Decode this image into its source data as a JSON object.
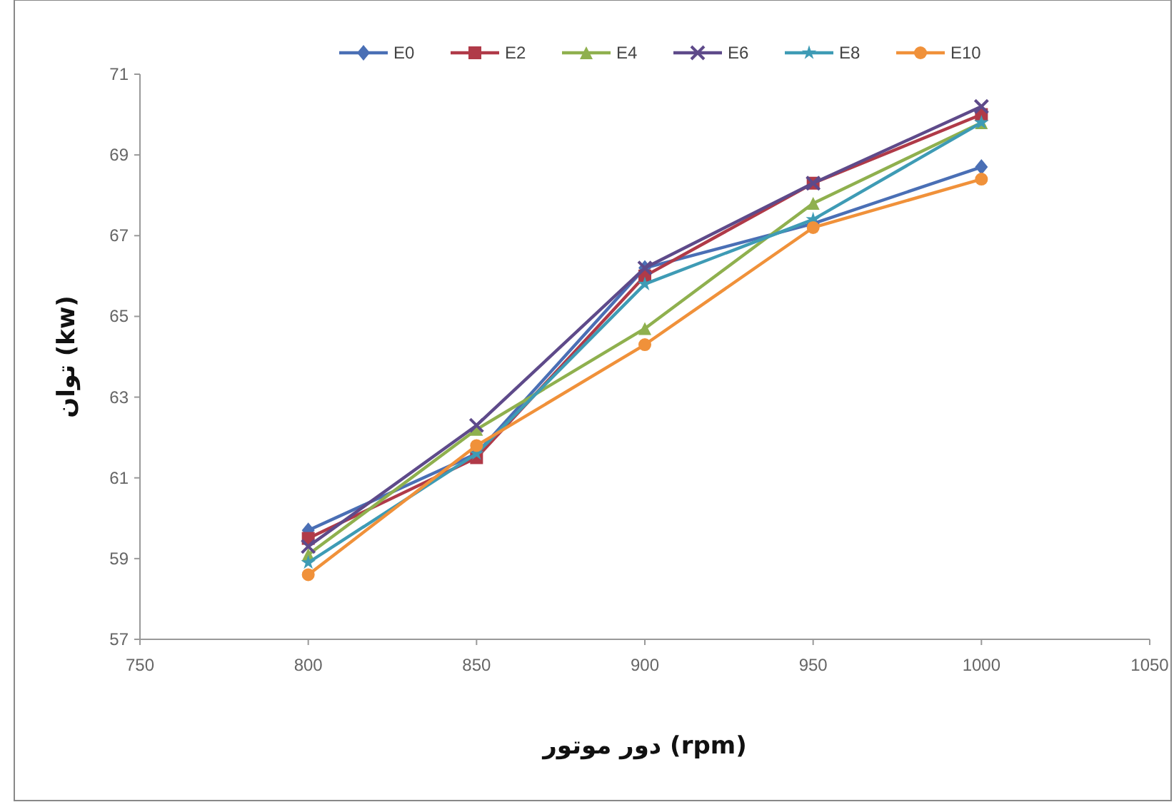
{
  "chart_data": {
    "type": "line",
    "xlabel": "دور موتور (rpm)",
    "ylabel": "توان (kw)",
    "x": [
      800,
      850,
      900,
      950,
      1000
    ],
    "xlim": [
      750,
      1050
    ],
    "xticks": [
      750,
      800,
      850,
      900,
      950,
      1000,
      1050
    ],
    "ylim": [
      57,
      71
    ],
    "yticks": [
      57,
      59,
      61,
      63,
      65,
      67,
      69,
      71
    ],
    "legend": "top",
    "grid": false,
    "series": [
      {
        "name": "E0",
        "color": "#4a6fb5",
        "marker": "diamond",
        "values": [
          59.7,
          61.6,
          66.2,
          67.3,
          68.7
        ]
      },
      {
        "name": "E2",
        "color": "#b03a48",
        "marker": "square",
        "values": [
          59.5,
          61.5,
          66.0,
          68.3,
          70.0
        ]
      },
      {
        "name": "E4",
        "color": "#8fb04e",
        "marker": "triangle",
        "values": [
          59.1,
          62.2,
          64.7,
          67.8,
          69.8
        ]
      },
      {
        "name": "E6",
        "color": "#5e4a8a",
        "marker": "cross",
        "values": [
          59.3,
          62.3,
          66.2,
          68.3,
          70.2
        ]
      },
      {
        "name": "E8",
        "color": "#3e9bb5",
        "marker": "star",
        "values": [
          58.9,
          61.6,
          65.8,
          67.4,
          69.8
        ]
      },
      {
        "name": "E10",
        "color": "#f0913a",
        "marker": "circle",
        "values": [
          58.6,
          61.8,
          64.3,
          67.2,
          68.4
        ]
      }
    ]
  }
}
